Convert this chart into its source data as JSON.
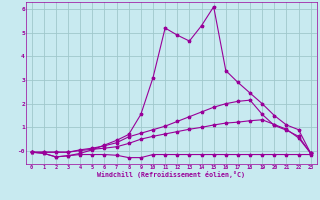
{
  "xlabel": "Windchill (Refroidissement éolien,°C)",
  "background_color": "#c8eaf0",
  "grid_color": "#a0c8cc",
  "line_color": "#990099",
  "xlim": [
    -0.5,
    23.5
  ],
  "ylim": [
    -0.55,
    6.3
  ],
  "yticks": [
    0,
    1,
    2,
    3,
    4,
    5,
    6
  ],
  "ytick_labels": [
    "-0",
    "1",
    "2",
    "3",
    "4",
    "5",
    "6"
  ],
  "xticks": [
    0,
    1,
    2,
    3,
    4,
    5,
    6,
    7,
    8,
    9,
    10,
    11,
    12,
    13,
    14,
    15,
    16,
    17,
    18,
    19,
    20,
    21,
    22,
    23
  ],
  "series": [
    {
      "x": [
        0,
        1,
        2,
        3,
        4,
        5,
        6,
        7,
        8,
        9,
        10,
        11,
        12,
        13,
        14,
        15,
        16,
        17,
        18,
        19,
        20,
        21,
        22,
        23
      ],
      "y": [
        -0.05,
        -0.1,
        -0.25,
        -0.2,
        -0.15,
        -0.15,
        -0.15,
        -0.18,
        -0.28,
        -0.28,
        -0.15,
        -0.15,
        -0.15,
        -0.15,
        -0.15,
        -0.15,
        -0.15,
        -0.15,
        -0.15,
        -0.15,
        -0.15,
        -0.15,
        -0.15,
        -0.15
      ]
    },
    {
      "x": [
        0,
        1,
        2,
        3,
        4,
        5,
        6,
        7,
        8,
        9,
        10,
        11,
        12,
        13,
        14,
        15,
        16,
        17,
        18,
        19,
        20,
        21,
        22,
        23
      ],
      "y": [
        -0.05,
        -0.05,
        -0.05,
        -0.05,
        0.02,
        0.07,
        0.12,
        0.18,
        0.32,
        0.5,
        0.62,
        0.72,
        0.82,
        0.92,
        1.0,
        1.1,
        1.18,
        1.22,
        1.28,
        1.32,
        1.12,
        0.92,
        0.55,
        -0.1
      ]
    },
    {
      "x": [
        0,
        1,
        2,
        3,
        4,
        5,
        6,
        7,
        8,
        9,
        10,
        11,
        12,
        13,
        14,
        15,
        16,
        17,
        18,
        19,
        20,
        21,
        22,
        23
      ],
      "y": [
        -0.05,
        -0.05,
        -0.05,
        -0.05,
        0.05,
        0.12,
        0.22,
        0.35,
        0.6,
        0.75,
        0.9,
        1.05,
        1.25,
        1.45,
        1.65,
        1.85,
        2.0,
        2.1,
        2.15,
        1.55,
        1.08,
        0.88,
        0.62,
        -0.1
      ]
    },
    {
      "x": [
        0,
        1,
        2,
        3,
        4,
        5,
        6,
        7,
        8,
        9,
        10,
        11,
        12,
        13,
        14,
        15,
        16,
        17,
        18,
        19,
        20,
        21,
        22,
        23
      ],
      "y": [
        -0.05,
        -0.1,
        -0.25,
        -0.2,
        -0.1,
        0.05,
        0.25,
        0.45,
        0.7,
        1.55,
        3.1,
        5.2,
        4.9,
        4.65,
        5.3,
        6.1,
        3.4,
        2.9,
        2.45,
        2.0,
        1.5,
        1.1,
        0.9,
        -0.1
      ]
    }
  ]
}
